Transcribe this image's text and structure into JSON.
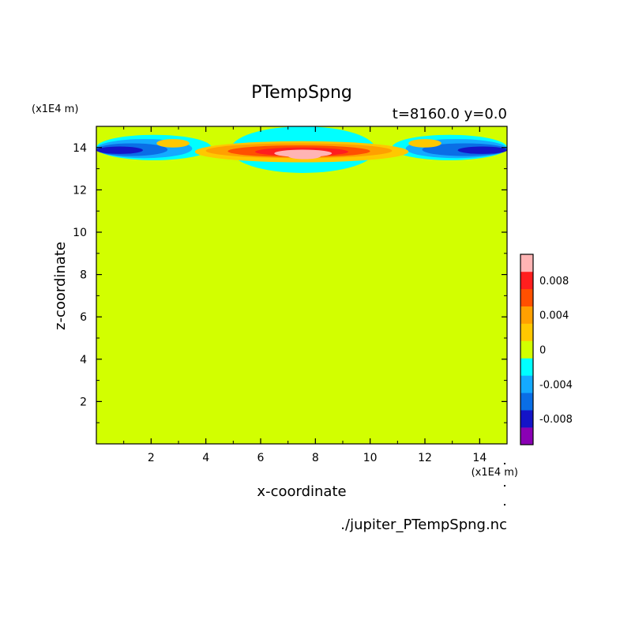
{
  "chart_data": {
    "type": "heatmap",
    "title": "PTempSpng",
    "subtitle": "t=8160.0 y=0.0",
    "xlabel": "x-coordinate",
    "ylabel": "z-coordinate",
    "x_unit": "(x1E4 m)",
    "y_unit": "(x1E4 m)",
    "source_file": "./jupiter_PTempSpng.nc",
    "xlim": [
      0,
      15
    ],
    "ylim": [
      0,
      15
    ],
    "x_ticks": [
      2,
      4,
      6,
      8,
      10,
      12,
      14
    ],
    "y_ticks": [
      2,
      4,
      6,
      8,
      10,
      12,
      14
    ],
    "x_tick_labels": [
      "2",
      "4",
      "6",
      "8",
      "10",
      "12",
      "14"
    ],
    "y_tick_labels": [
      "2",
      "4",
      "6",
      "8",
      "10",
      "12",
      "14"
    ],
    "background_value": 0,
    "colorbar": {
      "levels": [
        -0.01,
        -0.008,
        -0.006,
        -0.004,
        -0.002,
        0.0,
        0.002,
        0.004,
        0.006,
        0.008,
        0.01
      ],
      "colors": [
        "#8a00b4",
        "#1414c8",
        "#0a6ee6",
        "#14aaff",
        "#00ffff",
        "#d2ff00",
        "#ffc800",
        "#ffa000",
        "#ff5000",
        "#ff1e1e",
        "#ffb4b4"
      ],
      "tick_values": [
        -0.008,
        -0.004,
        0,
        0.004,
        0.008
      ],
      "tick_labels": [
        "-0.008",
        "-0.004",
        "0",
        "0.004",
        "0.008"
      ]
    },
    "features": [
      {
        "level": "-0.002",
        "x_range": [
          4.9,
          10.2
        ],
        "z_range": [
          12.8,
          15.0
        ]
      },
      {
        "level": "-0.002",
        "x_range": [
          0,
          4.2
        ],
        "z_range": [
          13.4,
          14.6
        ]
      },
      {
        "level": "-0.002",
        "x_range": [
          10.8,
          15
        ],
        "z_range": [
          13.4,
          14.6
        ]
      },
      {
        "level": "-0.004",
        "x_range": [
          0,
          3.5
        ],
        "z_range": [
          13.5,
          14.4
        ]
      },
      {
        "level": "-0.004",
        "x_range": [
          11.3,
          15
        ],
        "z_range": [
          13.5,
          14.4
        ]
      },
      {
        "level": "-0.006",
        "x_range": [
          0,
          2.6
        ],
        "z_range": [
          13.6,
          14.2
        ]
      },
      {
        "level": "-0.006",
        "x_range": [
          11.9,
          15
        ],
        "z_range": [
          13.6,
          14.2
        ]
      },
      {
        "level": "-0.008",
        "x_range": [
          0,
          1.7
        ],
        "z_range": [
          13.7,
          14.05
        ]
      },
      {
        "level": "-0.008",
        "x_range": [
          13.2,
          15
        ],
        "z_range": [
          13.7,
          14.05
        ]
      },
      {
        "level": "-0.002",
        "x_range": [
          7.0,
          7.6
        ],
        "z_range": [
          14.1,
          14.4
        ]
      },
      {
        "level": "-0.002",
        "x_range": [
          7.7,
          8.2
        ],
        "z_range": [
          14.1,
          14.4
        ]
      },
      {
        "level": "0.002",
        "x_range": [
          2.2,
          3.4
        ],
        "z_range": [
          14.0,
          14.4
        ]
      },
      {
        "level": "0.002",
        "x_range": [
          11.4,
          12.6
        ],
        "z_range": [
          14.0,
          14.4
        ]
      },
      {
        "level": "0.002",
        "x_range": [
          3.6,
          11.4
        ],
        "z_range": [
          13.3,
          14.3
        ]
      },
      {
        "level": "0.004",
        "x_range": [
          4.0,
          10.8
        ],
        "z_range": [
          13.5,
          14.2
        ]
      },
      {
        "level": "0.006",
        "x_range": [
          4.8,
          10.0
        ],
        "z_range": [
          13.55,
          14.1
        ]
      },
      {
        "level": "0.008",
        "x_range": [
          5.8,
          9.2
        ],
        "z_range": [
          13.6,
          14.0
        ]
      },
      {
        "level": "0.010",
        "x_range": [
          6.5,
          8.6
        ],
        "z_range": [
          13.55,
          13.9
        ]
      },
      {
        "level": "0.010",
        "x_range": [
          7.0,
          8.2
        ],
        "z_range": [
          13.45,
          13.75
        ]
      }
    ]
  }
}
